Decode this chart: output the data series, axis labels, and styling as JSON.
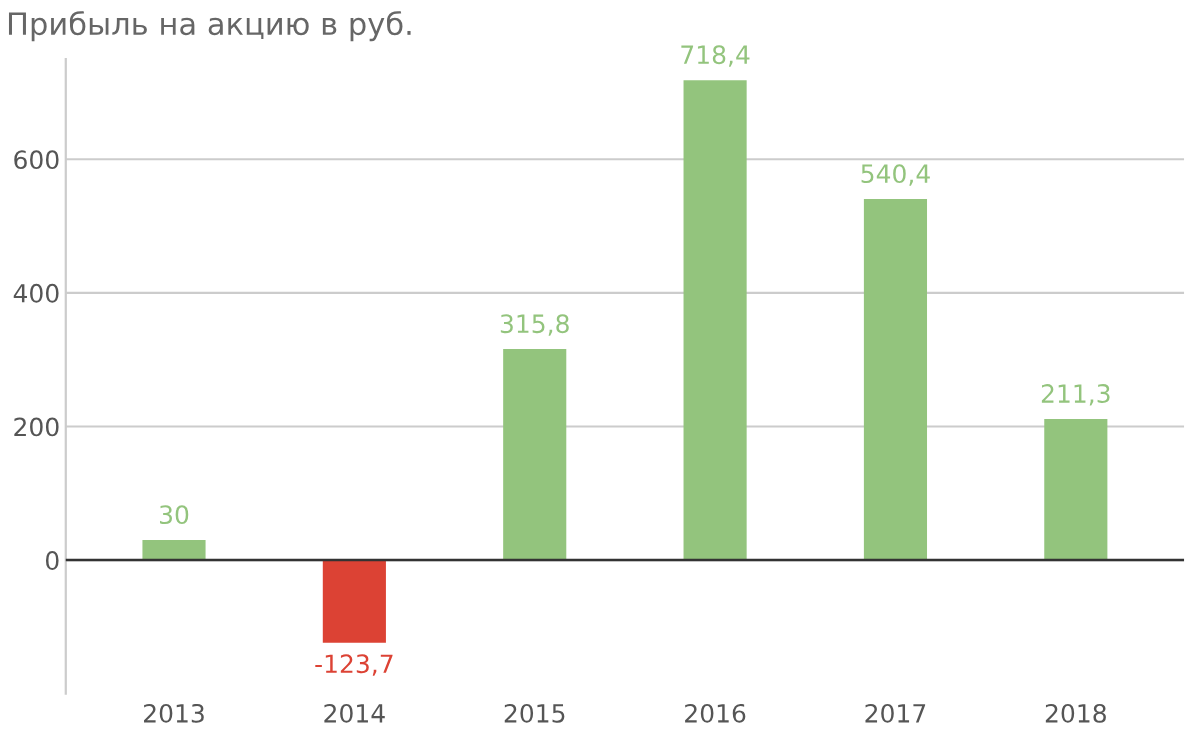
{
  "chart_data": {
    "type": "bar",
    "title": "Прибыль на акцию в руб.",
    "categories": [
      "2013",
      "2014",
      "2015",
      "2016",
      "2017",
      "2018"
    ],
    "values": [
      30,
      -123.7,
      315.8,
      718.4,
      540.4,
      211.3
    ],
    "colors": [
      "#93c47d",
      "#dc4234",
      "#93c47d",
      "#93c47d",
      "#93c47d",
      "#93c47d"
    ],
    "value_labels": [
      "30",
      "-123,7",
      "315,8",
      "718,4",
      "540,4",
      "211,3"
    ],
    "ylim": [
      -200,
      750
    ],
    "yticks": [
      0,
      200,
      400,
      600
    ],
    "grid": "y"
  }
}
